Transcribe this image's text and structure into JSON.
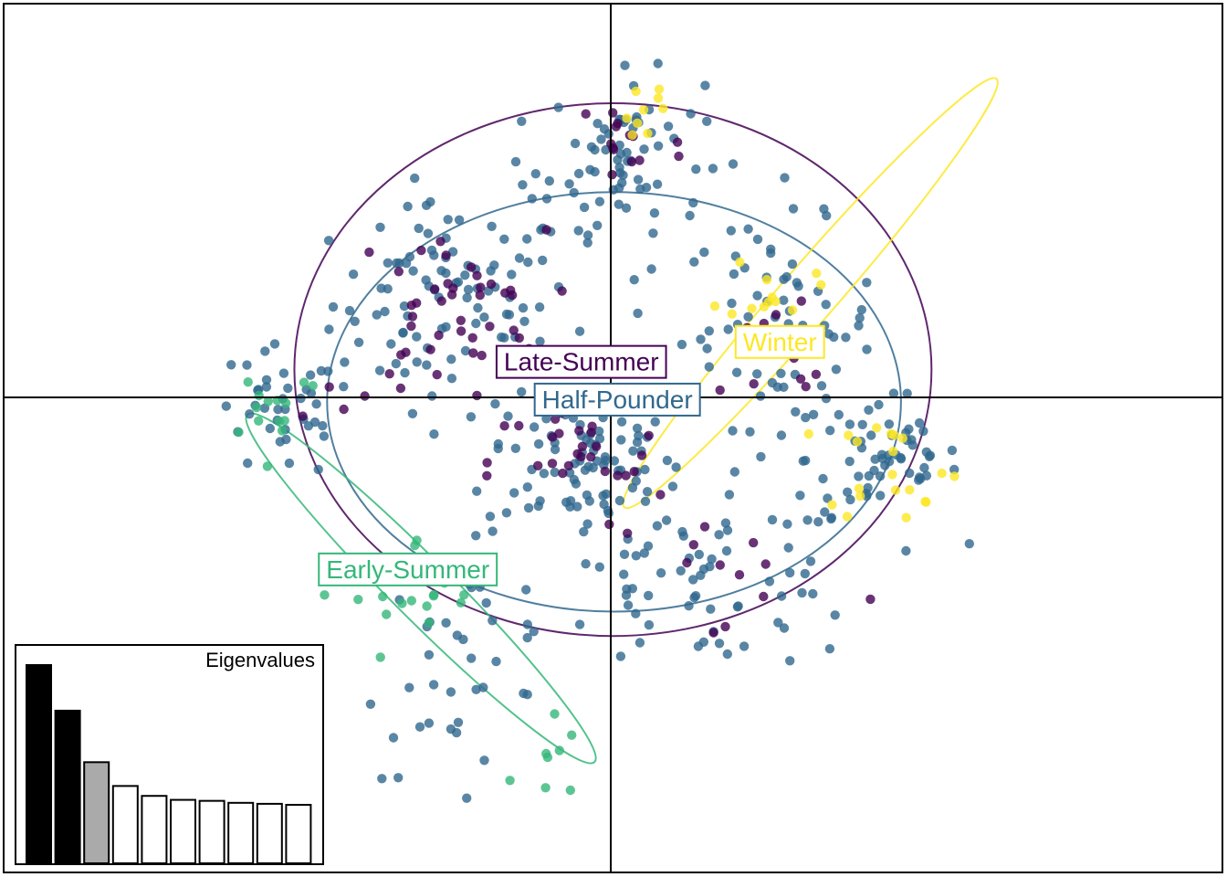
{
  "chart_data": {
    "type": "scatter",
    "title": "",
    "xlabel": "",
    "ylabel": "",
    "xlim": [
      -5.6,
      5.6
    ],
    "ylim": [
      -4.3,
      3.5
    ],
    "axes_at_origin": true,
    "grid": false,
    "colors": {
      "Late-Summer": "#440154",
      "Half-Pounder": "#31688e",
      "Early-Summer": "#35b779",
      "Winter": "#fde725"
    },
    "groups": [
      {
        "name": "Late-Summer",
        "label_at": [
          -0.27,
          0.32
        ],
        "ellipse": {
          "cx": 0.02,
          "cy": 0.25,
          "rx": 2.92,
          "ry": 2.4
        },
        "clusters": [
          {
            "cx": -1.5,
            "cy": 0.8,
            "sx": 0.45,
            "sy": 0.35,
            "n": 40
          },
          {
            "cx": -0.3,
            "cy": -0.6,
            "sx": 0.4,
            "sy": 0.3,
            "n": 30
          },
          {
            "cx": 0.1,
            "cy": 2.3,
            "sx": 0.3,
            "sy": 0.3,
            "n": 14
          },
          {
            "cx": 1.6,
            "cy": 0.4,
            "sx": 0.35,
            "sy": 0.35,
            "n": 12
          },
          {
            "cx": 1.1,
            "cy": -1.6,
            "sx": 0.6,
            "sy": 0.35,
            "n": 12
          },
          {
            "cx": -2.4,
            "cy": 0.15,
            "sx": 0.3,
            "sy": 0.2,
            "n": 5
          }
        ]
      },
      {
        "name": "Half-Pounder",
        "label_at": [
          0.06,
          -0.02
        ],
        "ellipse": {
          "cx": 0.03,
          "cy": -0.04,
          "rx": 2.63,
          "ry": 1.89
        },
        "clusters": [
          {
            "cx": -1.45,
            "cy": 0.85,
            "sx": 0.55,
            "sy": 0.45,
            "n": 95
          },
          {
            "cx": -0.25,
            "cy": -0.55,
            "sx": 0.45,
            "sy": 0.35,
            "n": 85
          },
          {
            "cx": 0.15,
            "cy": 2.2,
            "sx": 0.35,
            "sy": 0.35,
            "n": 60
          },
          {
            "cx": 1.55,
            "cy": 0.65,
            "sx": 0.45,
            "sy": 0.45,
            "n": 70
          },
          {
            "cx": 2.5,
            "cy": -0.55,
            "sx": 0.35,
            "sy": 0.3,
            "n": 60
          },
          {
            "cx": -3.0,
            "cy": -0.15,
            "sx": 0.35,
            "sy": 0.3,
            "n": 40
          },
          {
            "cx": 0.9,
            "cy": -1.65,
            "sx": 0.75,
            "sy": 0.4,
            "n": 75
          },
          {
            "cx": -1.35,
            "cy": -2.4,
            "sx": 0.45,
            "sy": 0.5,
            "n": 35
          },
          {
            "cx": -0.3,
            "cy": 1.7,
            "sx": 0.6,
            "sy": 0.35,
            "n": 20
          }
        ]
      },
      {
        "name": "Early-Summer",
        "label_at": [
          -1.86,
          -1.55
        ],
        "ellipse": {
          "cx": -1.74,
          "cy": -1.72,
          "rx": 2.25,
          "ry": 0.27,
          "angle_deg": 45
        },
        "clusters": [
          {
            "cx": -3.1,
            "cy": -0.05,
            "sx": 0.25,
            "sy": 0.2,
            "n": 14
          },
          {
            "cx": -1.75,
            "cy": -1.85,
            "sx": 0.3,
            "sy": 0.3,
            "n": 18
          },
          {
            "cx": -0.6,
            "cy": -3.3,
            "sx": 0.15,
            "sy": 0.25,
            "n": 8
          }
        ]
      },
      {
        "name": "Winter",
        "label_at": [
          1.55,
          0.5
        ],
        "ellipse": {
          "cx": 1.83,
          "cy": 0.94,
          "rx": 2.6,
          "ry": 0.25,
          "angle_deg": -49
        },
        "clusters": [
          {
            "cx": 0.3,
            "cy": 2.6,
            "sx": 0.15,
            "sy": 0.2,
            "n": 9
          },
          {
            "cx": 1.45,
            "cy": 1.0,
            "sx": 0.2,
            "sy": 0.15,
            "n": 12
          },
          {
            "cx": 2.6,
            "cy": -0.6,
            "sx": 0.3,
            "sy": 0.25,
            "n": 20
          }
        ]
      }
    ]
  },
  "inset": {
    "title": "Eigenvalues",
    "bars": [
      {
        "value": 1.0,
        "fill": "#000000"
      },
      {
        "value": 0.77,
        "fill": "#000000"
      },
      {
        "value": 0.51,
        "fill": "#aaaaaa"
      },
      {
        "value": 0.39,
        "fill": "#ffffff"
      },
      {
        "value": 0.34,
        "fill": "#ffffff"
      },
      {
        "value": 0.32,
        "fill": "#ffffff"
      },
      {
        "value": 0.315,
        "fill": "#ffffff"
      },
      {
        "value": 0.305,
        "fill": "#ffffff"
      },
      {
        "value": 0.3,
        "fill": "#ffffff"
      },
      {
        "value": 0.295,
        "fill": "#ffffff"
      }
    ]
  }
}
